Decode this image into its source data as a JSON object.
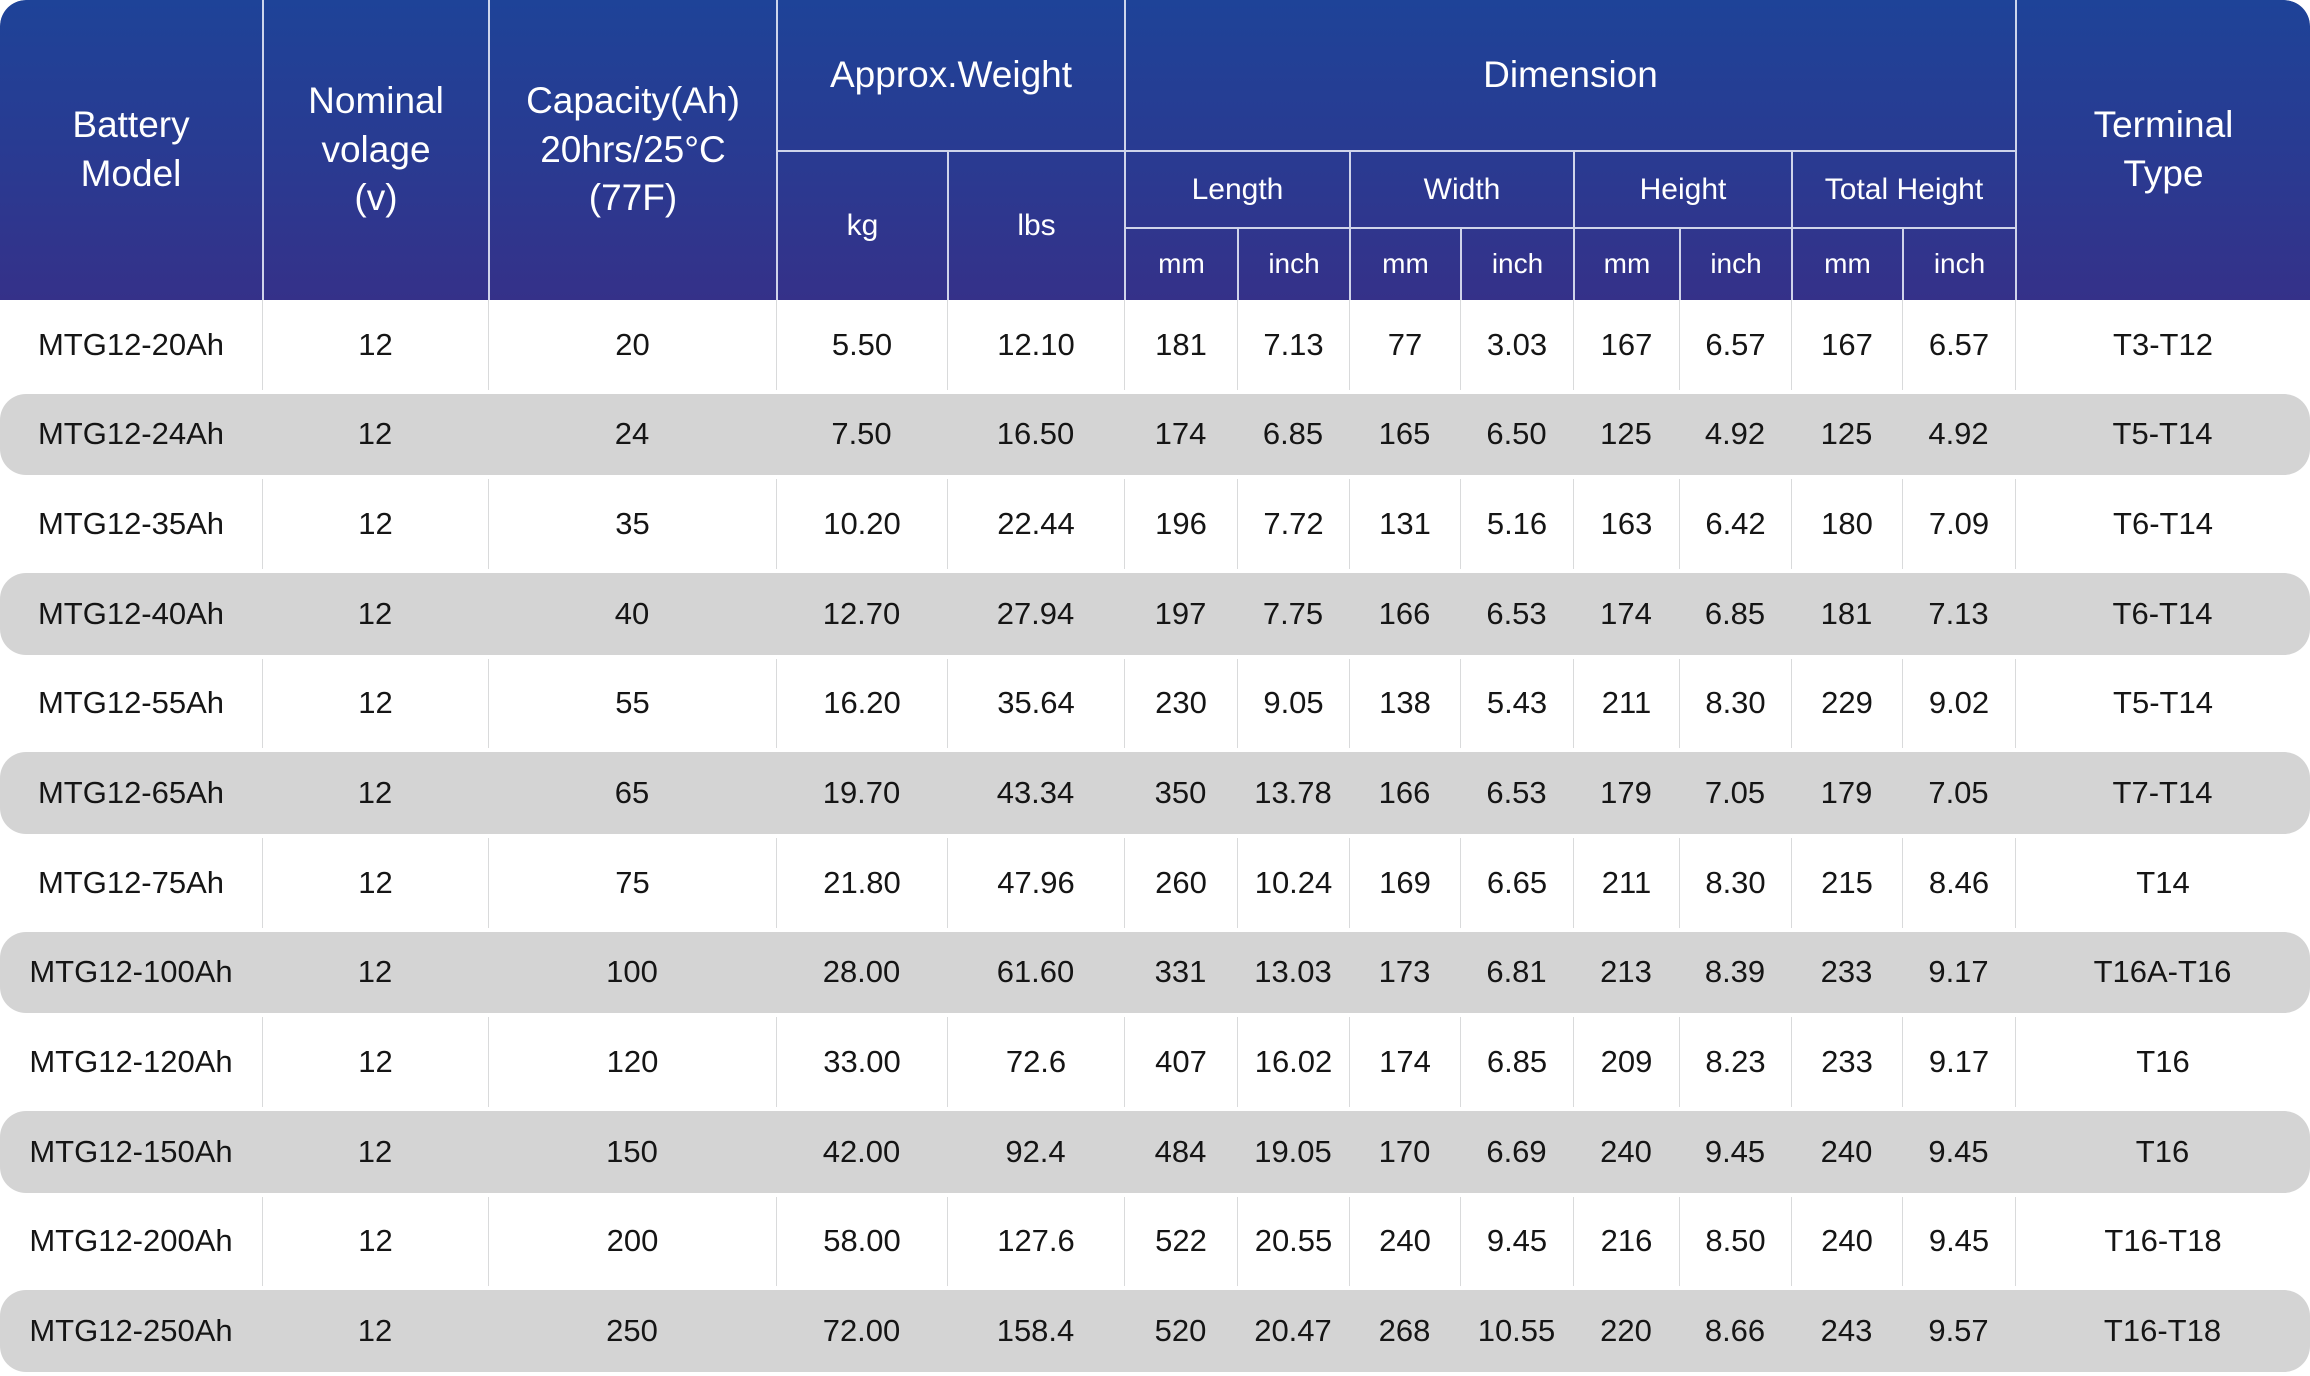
{
  "table": {
    "header": {
      "battery_model": "Battery\nModel",
      "nominal_voltage": "Nominal\nvolage\n(v)",
      "capacity": "Capacity(Ah)\n20hrs/25°C\n(77F)",
      "approx_weight": "Approx.Weight",
      "dimension": "Dimension",
      "terminal_type": "Terminal\nType",
      "kg": "kg",
      "lbs": "lbs",
      "length": "Length",
      "width": "Width",
      "height": "Height",
      "total_height": "Total Height",
      "mm": "mm",
      "inch": "inch"
    },
    "colors": {
      "header_gradient_top": "#1E4398",
      "header_gradient_bottom": "#353189",
      "stripe_row": "#D4D4D4",
      "row_divider": "#D9DADB",
      "header_divider": "#ECF0FA",
      "header_text": "#FFFFFF",
      "body_text": "#151515"
    },
    "rows": [
      {
        "model": "MTG12-20Ah",
        "voltage": "12",
        "capacity": "20",
        "kg": "5.50",
        "lbs": "12.10",
        "length_mm": "181",
        "length_inch": "7.13",
        "width_mm": "77",
        "width_inch": "3.03",
        "height_mm": "167",
        "height_inch": "6.57",
        "total_height_mm": "167",
        "total_height_inch": "6.57",
        "terminal": "T3-T12"
      },
      {
        "model": "MTG12-24Ah",
        "voltage": "12",
        "capacity": "24",
        "kg": "7.50",
        "lbs": "16.50",
        "length_mm": "174",
        "length_inch": "6.85",
        "width_mm": "165",
        "width_inch": "6.50",
        "height_mm": "125",
        "height_inch": "4.92",
        "total_height_mm": "125",
        "total_height_inch": "4.92",
        "terminal": "T5-T14"
      },
      {
        "model": "MTG12-35Ah",
        "voltage": "12",
        "capacity": "35",
        "kg": "10.20",
        "lbs": "22.44",
        "length_mm": "196",
        "length_inch": "7.72",
        "width_mm": "131",
        "width_inch": "5.16",
        "height_mm": "163",
        "height_inch": "6.42",
        "total_height_mm": "180",
        "total_height_inch": "7.09",
        "terminal": "T6-T14"
      },
      {
        "model": "MTG12-40Ah",
        "voltage": "12",
        "capacity": "40",
        "kg": "12.70",
        "lbs": "27.94",
        "length_mm": "197",
        "length_inch": "7.75",
        "width_mm": "166",
        "width_inch": "6.53",
        "height_mm": "174",
        "height_inch": "6.85",
        "total_height_mm": "181",
        "total_height_inch": "7.13",
        "terminal": "T6-T14"
      },
      {
        "model": "MTG12-55Ah",
        "voltage": "12",
        "capacity": "55",
        "kg": "16.20",
        "lbs": "35.64",
        "length_mm": "230",
        "length_inch": "9.05",
        "width_mm": "138",
        "width_inch": "5.43",
        "height_mm": "211",
        "height_inch": "8.30",
        "total_height_mm": "229",
        "total_height_inch": "9.02",
        "terminal": "T5-T14"
      },
      {
        "model": "MTG12-65Ah",
        "voltage": "12",
        "capacity": "65",
        "kg": "19.70",
        "lbs": "43.34",
        "length_mm": "350",
        "length_inch": "13.78",
        "width_mm": "166",
        "width_inch": "6.53",
        "height_mm": "179",
        "height_inch": "7.05",
        "total_height_mm": "179",
        "total_height_inch": "7.05",
        "terminal": "T7-T14"
      },
      {
        "model": "MTG12-75Ah",
        "voltage": "12",
        "capacity": "75",
        "kg": "21.80",
        "lbs": "47.96",
        "length_mm": "260",
        "length_inch": "10.24",
        "width_mm": "169",
        "width_inch": "6.65",
        "height_mm": "211",
        "height_inch": "8.30",
        "total_height_mm": "215",
        "total_height_inch": "8.46",
        "terminal": "T14"
      },
      {
        "model": "MTG12-100Ah",
        "voltage": "12",
        "capacity": "100",
        "kg": "28.00",
        "lbs": "61.60",
        "length_mm": "331",
        "length_inch": "13.03",
        "width_mm": "173",
        "width_inch": "6.81",
        "height_mm": "213",
        "height_inch": "8.39",
        "total_height_mm": "233",
        "total_height_inch": "9.17",
        "terminal": "T16A-T16"
      },
      {
        "model": "MTG12-120Ah",
        "voltage": "12",
        "capacity": "120",
        "kg": "33.00",
        "lbs": "72.6",
        "length_mm": "407",
        "length_inch": "16.02",
        "width_mm": "174",
        "width_inch": "6.85",
        "height_mm": "209",
        "height_inch": "8.23",
        "total_height_mm": "233",
        "total_height_inch": "9.17",
        "terminal": "T16"
      },
      {
        "model": "MTG12-150Ah",
        "voltage": "12",
        "capacity": "150",
        "kg": "42.00",
        "lbs": "92.4",
        "length_mm": "484",
        "length_inch": "19.05",
        "width_mm": "170",
        "width_inch": "6.69",
        "height_mm": "240",
        "height_inch": "9.45",
        "total_height_mm": "240",
        "total_height_inch": "9.45",
        "terminal": "T16"
      },
      {
        "model": "MTG12-200Ah",
        "voltage": "12",
        "capacity": "200",
        "kg": "58.00",
        "lbs": "127.6",
        "length_mm": "522",
        "length_inch": "20.55",
        "width_mm": "240",
        "width_inch": "9.45",
        "height_mm": "216",
        "height_inch": "8.50",
        "total_height_mm": "240",
        "total_height_inch": "9.45",
        "terminal": "T16-T18"
      },
      {
        "model": "MTG12-250Ah",
        "voltage": "12",
        "capacity": "250",
        "kg": "72.00",
        "lbs": "158.4",
        "length_mm": "520",
        "length_inch": "20.47",
        "width_mm": "268",
        "width_inch": "10.55",
        "height_mm": "220",
        "height_inch": "8.66",
        "total_height_mm": "243",
        "total_height_inch": "9.57",
        "terminal": "T16-T18"
      }
    ]
  }
}
